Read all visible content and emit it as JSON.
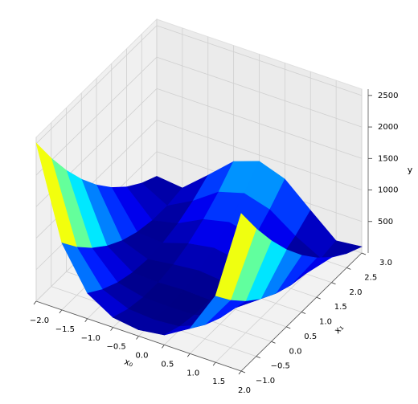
{
  "chart_data": {
    "type": "surface3d",
    "x_label": "x₀",
    "y_label": "x₁",
    "z_label": "y",
    "x0": [
      -2,
      -1.5,
      -1,
      -0.5,
      0,
      0.5,
      1,
      1.5,
      2
    ],
    "x1": [
      -1,
      -0.5,
      0,
      0.5,
      1,
      1.5,
      2,
      2.5,
      3
    ],
    "z": [
      [
        2509,
        2034,
        1609,
        1234,
        909,
        634,
        409,
        234,
        109
      ],
      [
        1062.5,
        762.5,
        512.5,
        312.5,
        162.5,
        62.5,
        12.5,
        12.5,
        62.5
      ],
      [
        404,
        229,
        104,
        29,
        4,
        29,
        104,
        229,
        404
      ],
      [
        158.5,
        58.5,
        8.5,
        8.5,
        58.5,
        158.5,
        308.5,
        508.5,
        758.5
      ],
      [
        101,
        26,
        1,
        26,
        101,
        226,
        401,
        626,
        901
      ],
      [
        156.5,
        56.5,
        6.5,
        6.5,
        56.5,
        156.5,
        306.5,
        506.5,
        756.5
      ],
      [
        400,
        225,
        100,
        25,
        0,
        25,
        100,
        225,
        400
      ],
      [
        1056.5,
        756.5,
        506.5,
        306.5,
        156.5,
        56.5,
        6.5,
        6.5,
        56.5
      ],
      [
        2501,
        2026,
        1601,
        1226,
        901,
        626,
        401,
        226,
        101
      ]
    ],
    "xlim": [
      -2,
      2
    ],
    "ylim": [
      -1,
      3
    ],
    "zlim": [
      0,
      2600
    ],
    "xticks": [
      {
        "value": -2,
        "label": "−2.0"
      },
      {
        "value": -1.5,
        "label": "−1.5"
      },
      {
        "value": -1,
        "label": "−1.0"
      },
      {
        "value": -0.5,
        "label": "−0.5"
      },
      {
        "value": 0,
        "label": "0.0"
      },
      {
        "value": 0.5,
        "label": "0.5"
      },
      {
        "value": 1,
        "label": "1.0"
      },
      {
        "value": 1.5,
        "label": "1.5"
      },
      {
        "value": 2,
        "label": "2.0"
      }
    ],
    "yticks": [
      {
        "value": -1,
        "label": "−1.0"
      },
      {
        "value": -0.5,
        "label": "−0.5"
      },
      {
        "value": 0,
        "label": "0.0"
      },
      {
        "value": 0.5,
        "label": "0.5"
      },
      {
        "value": 1,
        "label": "1.0"
      },
      {
        "value": 1.5,
        "label": "1.5"
      },
      {
        "value": 2,
        "label": "2.0"
      },
      {
        "value": 2.5,
        "label": "2.5"
      },
      {
        "value": 3,
        "label": "3.0"
      }
    ],
    "zticks": [
      500,
      1000,
      1500,
      2000,
      2500
    ],
    "colormap": "jet",
    "grid": true
  }
}
